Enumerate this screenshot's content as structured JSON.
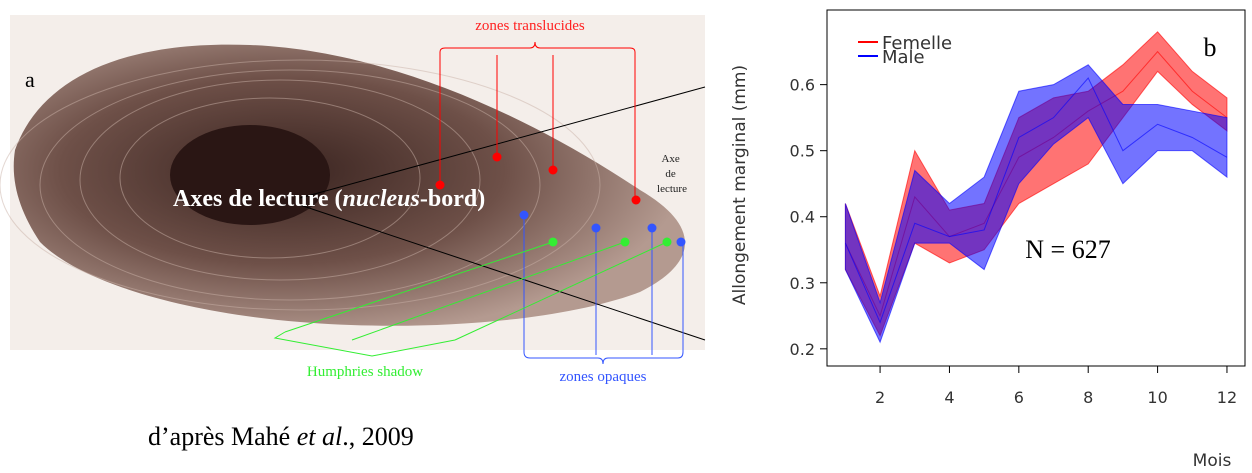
{
  "panel_a": {
    "label": "a",
    "zones_translucides": "zones translucides",
    "axe_small": [
      "Axe",
      "de",
      "lecture"
    ],
    "axes_label": {
      "pre": "Axes de lecture (",
      "italic": "nucleus",
      "post": "-bord)"
    },
    "humphries": "Humphries shadow",
    "zones_opaques": "zones opaques",
    "caption": {
      "pre": "d’après Mahé ",
      "italic": "et al",
      "post": "., 2009"
    }
  },
  "chart_data": {
    "type": "band",
    "panel_label": "b",
    "annotation": "N = 627",
    "x_label": "Mois",
    "y_label": "Allongement marginal (mm)",
    "x": [
      1,
      2,
      3,
      4,
      5,
      6,
      7,
      8,
      9,
      10,
      11,
      12
    ],
    "xlim": [
      0.47,
      12.52
    ],
    "ylim": [
      0.174,
      0.713
    ],
    "xticks": [
      2,
      4,
      6,
      8,
      10,
      12
    ],
    "yticks": [
      0.2,
      0.3,
      0.4,
      0.5,
      0.6
    ],
    "legend": "top-left",
    "series": [
      {
        "name": "Femelle",
        "color": "#ff0000",
        "values": [
          0.36,
          0.25,
          0.43,
          0.37,
          0.39,
          0.49,
          0.52,
          0.56,
          0.59,
          0.65,
          0.59,
          0.55
        ],
        "lower": [
          0.32,
          0.22,
          0.36,
          0.33,
          0.35,
          0.42,
          0.45,
          0.48,
          0.55,
          0.62,
          0.57,
          0.53
        ],
        "upper": [
          0.42,
          0.28,
          0.5,
          0.41,
          0.42,
          0.55,
          0.58,
          0.59,
          0.63,
          0.68,
          0.62,
          0.58
        ]
      },
      {
        "name": "Male",
        "color": "#0000ff",
        "values": [
          0.36,
          0.24,
          0.39,
          0.37,
          0.38,
          0.52,
          0.55,
          0.61,
          0.5,
          0.54,
          0.52,
          0.49
        ],
        "lower": [
          0.32,
          0.21,
          0.36,
          0.36,
          0.32,
          0.45,
          0.51,
          0.55,
          0.45,
          0.5,
          0.5,
          0.46
        ],
        "upper": [
          0.42,
          0.27,
          0.47,
          0.42,
          0.46,
          0.59,
          0.6,
          0.63,
          0.57,
          0.57,
          0.56,
          0.55
        ]
      }
    ]
  }
}
